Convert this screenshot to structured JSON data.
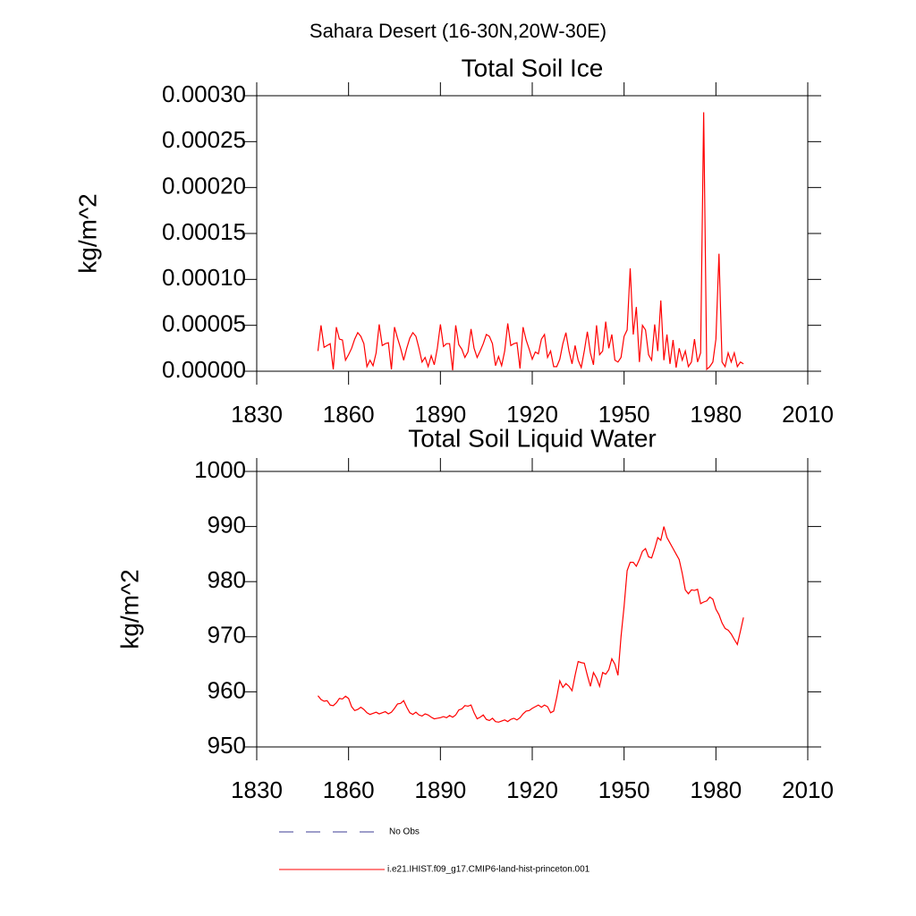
{
  "title": "Sahara Desert (16-30N,20W-30E)",
  "legend": [
    {
      "name": "No Obs",
      "color": "#3c3c96",
      "dashed": true
    },
    {
      "name": "i.e21.IHIST.f09_g17.CMIP6-land-hist-princeton.001",
      "color": "#ff0000",
      "dashed": false
    }
  ],
  "chart_data": [
    {
      "type": "line",
      "title": "Total Soil Ice",
      "ylabel": "kg/m^2",
      "xlim": [
        1830,
        2010
      ],
      "xticks": [
        1830,
        1860,
        1890,
        1920,
        1950,
        1980,
        2010
      ],
      "ylim": [
        0,
        0.0003
      ],
      "yticks": [
        {
          "value": 0,
          "label": "0.00000"
        },
        {
          "value": 5e-05,
          "label": "0.00005"
        },
        {
          "value": 0.0001,
          "label": "0.00010"
        },
        {
          "value": 0.00015,
          "label": "0.00015"
        },
        {
          "value": 0.0002,
          "label": "0.00020"
        },
        {
          "value": 0.00025,
          "label": "0.00025"
        },
        {
          "value": 0.0003,
          "label": "0.00030"
        }
      ],
      "x": [
        1850,
        1851,
        1852,
        1853,
        1854,
        1855,
        1856,
        1857,
        1858,
        1859,
        1860,
        1861,
        1862,
        1863,
        1864,
        1865,
        1866,
        1867,
        1868,
        1869,
        1870,
        1871,
        1872,
        1873,
        1874,
        1875,
        1876,
        1877,
        1878,
        1879,
        1880,
        1881,
        1882,
        1883,
        1884,
        1885,
        1886,
        1887,
        1888,
        1889,
        1890,
        1891,
        1892,
        1893,
        1894,
        1895,
        1896,
        1897,
        1898,
        1899,
        1900,
        1901,
        1902,
        1903,
        1904,
        1905,
        1906,
        1907,
        1908,
        1909,
        1910,
        1911,
        1912,
        1913,
        1914,
        1915,
        1916,
        1917,
        1918,
        1919,
        1920,
        1921,
        1922,
        1923,
        1924,
        1925,
        1926,
        1927,
        1928,
        1929,
        1930,
        1931,
        1932,
        1933,
        1934,
        1935,
        1936,
        1937,
        1938,
        1939,
        1940,
        1941,
        1942,
        1943,
        1944,
        1945,
        1946,
        1947,
        1948,
        1949,
        1950,
        1951,
        1952,
        1953,
        1954,
        1955,
        1956,
        1957,
        1958,
        1959,
        1960,
        1961,
        1962,
        1963,
        1964,
        1965,
        1966,
        1967,
        1968,
        1969,
        1970,
        1971,
        1972,
        1973,
        1974,
        1975,
        1976,
        1977,
        1978,
        1979,
        1980,
        1981,
        1982,
        1983,
        1984,
        1985,
        1986,
        1987,
        1988,
        1989
      ],
      "series": [
        {
          "color": "#ff0000",
          "values": [
            2.2e-05,
            5e-05,
            2.6e-05,
            2.8e-05,
            3e-05,
            2e-06,
            4.8e-05,
            3.5e-05,
            3.4e-05,
            1.2e-05,
            1.8e-05,
            2.5e-05,
            3.5e-05,
            4.2e-05,
            3.8e-05,
            3e-05,
            5e-06,
            1.2e-05,
            6e-06,
            2e-05,
            5.1e-05,
            2.8e-05,
            3e-05,
            3.1e-05,
            2e-06,
            4.8e-05,
            3.6e-05,
            2.5e-05,
            1.2e-05,
            2.5e-05,
            3.6e-05,
            4.2e-05,
            3.8e-05,
            2.5e-05,
            1e-05,
            1.5e-05,
            5e-06,
            1.7e-05,
            7e-06,
            2.5e-05,
            5.1e-05,
            2.7e-05,
            3e-05,
            3e-05,
            1e-06,
            5e-05,
            2.9e-05,
            2.4e-05,
            1.5e-05,
            2.1e-05,
            4.6e-05,
            2.5e-05,
            1.5e-05,
            2.2e-05,
            3e-05,
            4e-05,
            3.8e-05,
            3e-05,
            6e-06,
            1.6e-05,
            6e-06,
            2.2e-05,
            5.2e-05,
            2.8e-05,
            3e-05,
            3.1e-05,
            3e-06,
            4.8e-05,
            3.4e-05,
            2.4e-05,
            1.3e-05,
            2.1e-05,
            1.9e-05,
            3.5e-05,
            4e-05,
            1.5e-05,
            2.2e-05,
            5e-06,
            5e-06,
            1.3e-05,
            3e-05,
            4.2e-05,
            2.2e-05,
            8e-06,
            2.8e-05,
            1.2e-05,
            4e-06,
            2.2e-05,
            4.3e-05,
            2e-05,
            7e-06,
            5e-05,
            1.8e-05,
            2.2e-05,
            5.4e-05,
            2.5e-05,
            4e-05,
            1.2e-05,
            1e-05,
            1.5e-05,
            3.8e-05,
            4.5e-05,
            0.000112,
            4e-05,
            7e-05,
            1e-05,
            5e-05,
            4.5e-05,
            1.8e-05,
            1.2e-05,
            5.1e-05,
            2.2e-05,
            7.7e-05,
            1.2e-05,
            4e-05,
            8e-06,
            3.4e-05,
            4e-06,
            2.5e-05,
            1.2e-05,
            2.2e-05,
            5e-06,
            1e-05,
            3.5e-05,
            1e-05,
            2e-05,
            0.000282,
            2e-06,
            5e-06,
            1e-05,
            3.5e-05,
            0.000128,
            1e-05,
            5e-06,
            2e-05,
            1e-05,
            2e-05,
            5e-06,
            1e-05,
            8e-06
          ]
        }
      ]
    },
    {
      "type": "line",
      "title": "Total Soil Liquid Water",
      "ylabel": "kg/m^2",
      "xlim": [
        1830,
        2010
      ],
      "xticks": [
        1830,
        1860,
        1890,
        1920,
        1950,
        1980,
        2010
      ],
      "ylim": [
        950,
        1000
      ],
      "yticks": [
        950,
        960,
        970,
        980,
        990,
        1000
      ],
      "x": [
        1850,
        1851,
        1852,
        1853,
        1854,
        1855,
        1856,
        1857,
        1858,
        1859,
        1860,
        1861,
        1862,
        1863,
        1864,
        1865,
        1866,
        1867,
        1868,
        1869,
        1870,
        1871,
        1872,
        1873,
        1874,
        1875,
        1876,
        1877,
        1878,
        1879,
        1880,
        1881,
        1882,
        1883,
        1884,
        1885,
        1886,
        1887,
        1888,
        1889,
        1890,
        1891,
        1892,
        1893,
        1894,
        1895,
        1896,
        1897,
        1898,
        1899,
        1900,
        1901,
        1902,
        1903,
        1904,
        1905,
        1906,
        1907,
        1908,
        1909,
        1910,
        1911,
        1912,
        1913,
        1914,
        1915,
        1916,
        1917,
        1918,
        1919,
        1920,
        1921,
        1922,
        1923,
        1924,
        1925,
        1926,
        1927,
        1928,
        1929,
        1930,
        1931,
        1932,
        1933,
        1934,
        1935,
        1936,
        1937,
        1938,
        1939,
        1940,
        1941,
        1942,
        1943,
        1944,
        1945,
        1946,
        1947,
        1948,
        1949,
        1950,
        1951,
        1952,
        1953,
        1954,
        1955,
        1956,
        1957,
        1958,
        1959,
        1960,
        1961,
        1962,
        1963,
        1964,
        1965,
        1966,
        1967,
        1968,
        1969,
        1970,
        1971,
        1972,
        1973,
        1974,
        1975,
        1976,
        1977,
        1978,
        1979,
        1980,
        1981,
        1982,
        1983,
        1984,
        1985,
        1986,
        1987,
        1988,
        1989
      ],
      "series": [
        {
          "color": "#ff0000",
          "values": [
            959.3,
            958.6,
            958.3,
            958.4,
            957.6,
            957.5,
            958.0,
            958.8,
            958.7,
            959.2,
            958.8,
            957.3,
            956.6,
            956.8,
            957.2,
            956.8,
            956.2,
            955.9,
            956.1,
            956.3,
            956.0,
            956.2,
            956.4,
            956.0,
            956.3,
            957.0,
            957.8,
            957.9,
            958.4,
            957.2,
            956.2,
            955.9,
            956.3,
            955.8,
            955.6,
            956.0,
            955.8,
            955.4,
            955.1,
            955.2,
            955.3,
            955.5,
            955.3,
            955.7,
            955.4,
            955.8,
            956.7,
            956.9,
            957.5,
            957.4,
            957.6,
            956.2,
            955.1,
            955.4,
            955.8,
            955.0,
            954.8,
            955.2,
            954.6,
            954.5,
            954.7,
            954.9,
            954.6,
            955.0,
            955.2,
            954.9,
            955.3,
            956.0,
            956.5,
            956.6,
            957.0,
            957.3,
            957.6,
            957.2,
            957.6,
            957.3,
            956.2,
            956.5,
            959.0,
            962.0,
            960.8,
            961.5,
            961.0,
            960.2,
            963.0,
            965.5,
            965.3,
            965.2,
            963.0,
            961.0,
            963.5,
            962.5,
            961.0,
            963.5,
            963.2,
            964.0,
            966.0,
            965.0,
            963.0,
            970.0,
            975.5,
            982.0,
            983.5,
            983.5,
            982.8,
            984.0,
            985.5,
            986.0,
            984.5,
            984.3,
            986.0,
            988.0,
            987.5,
            990.0,
            988.0,
            987.0,
            986.0,
            985.0,
            984.0,
            981.5,
            978.5,
            977.8,
            978.5,
            978.4,
            978.6,
            976.0,
            976.3,
            976.5,
            977.2,
            976.8,
            975.0,
            974.0,
            972.5,
            971.5,
            971.2,
            970.5,
            969.5,
            968.6,
            971.0,
            973.5
          ]
        }
      ]
    }
  ]
}
